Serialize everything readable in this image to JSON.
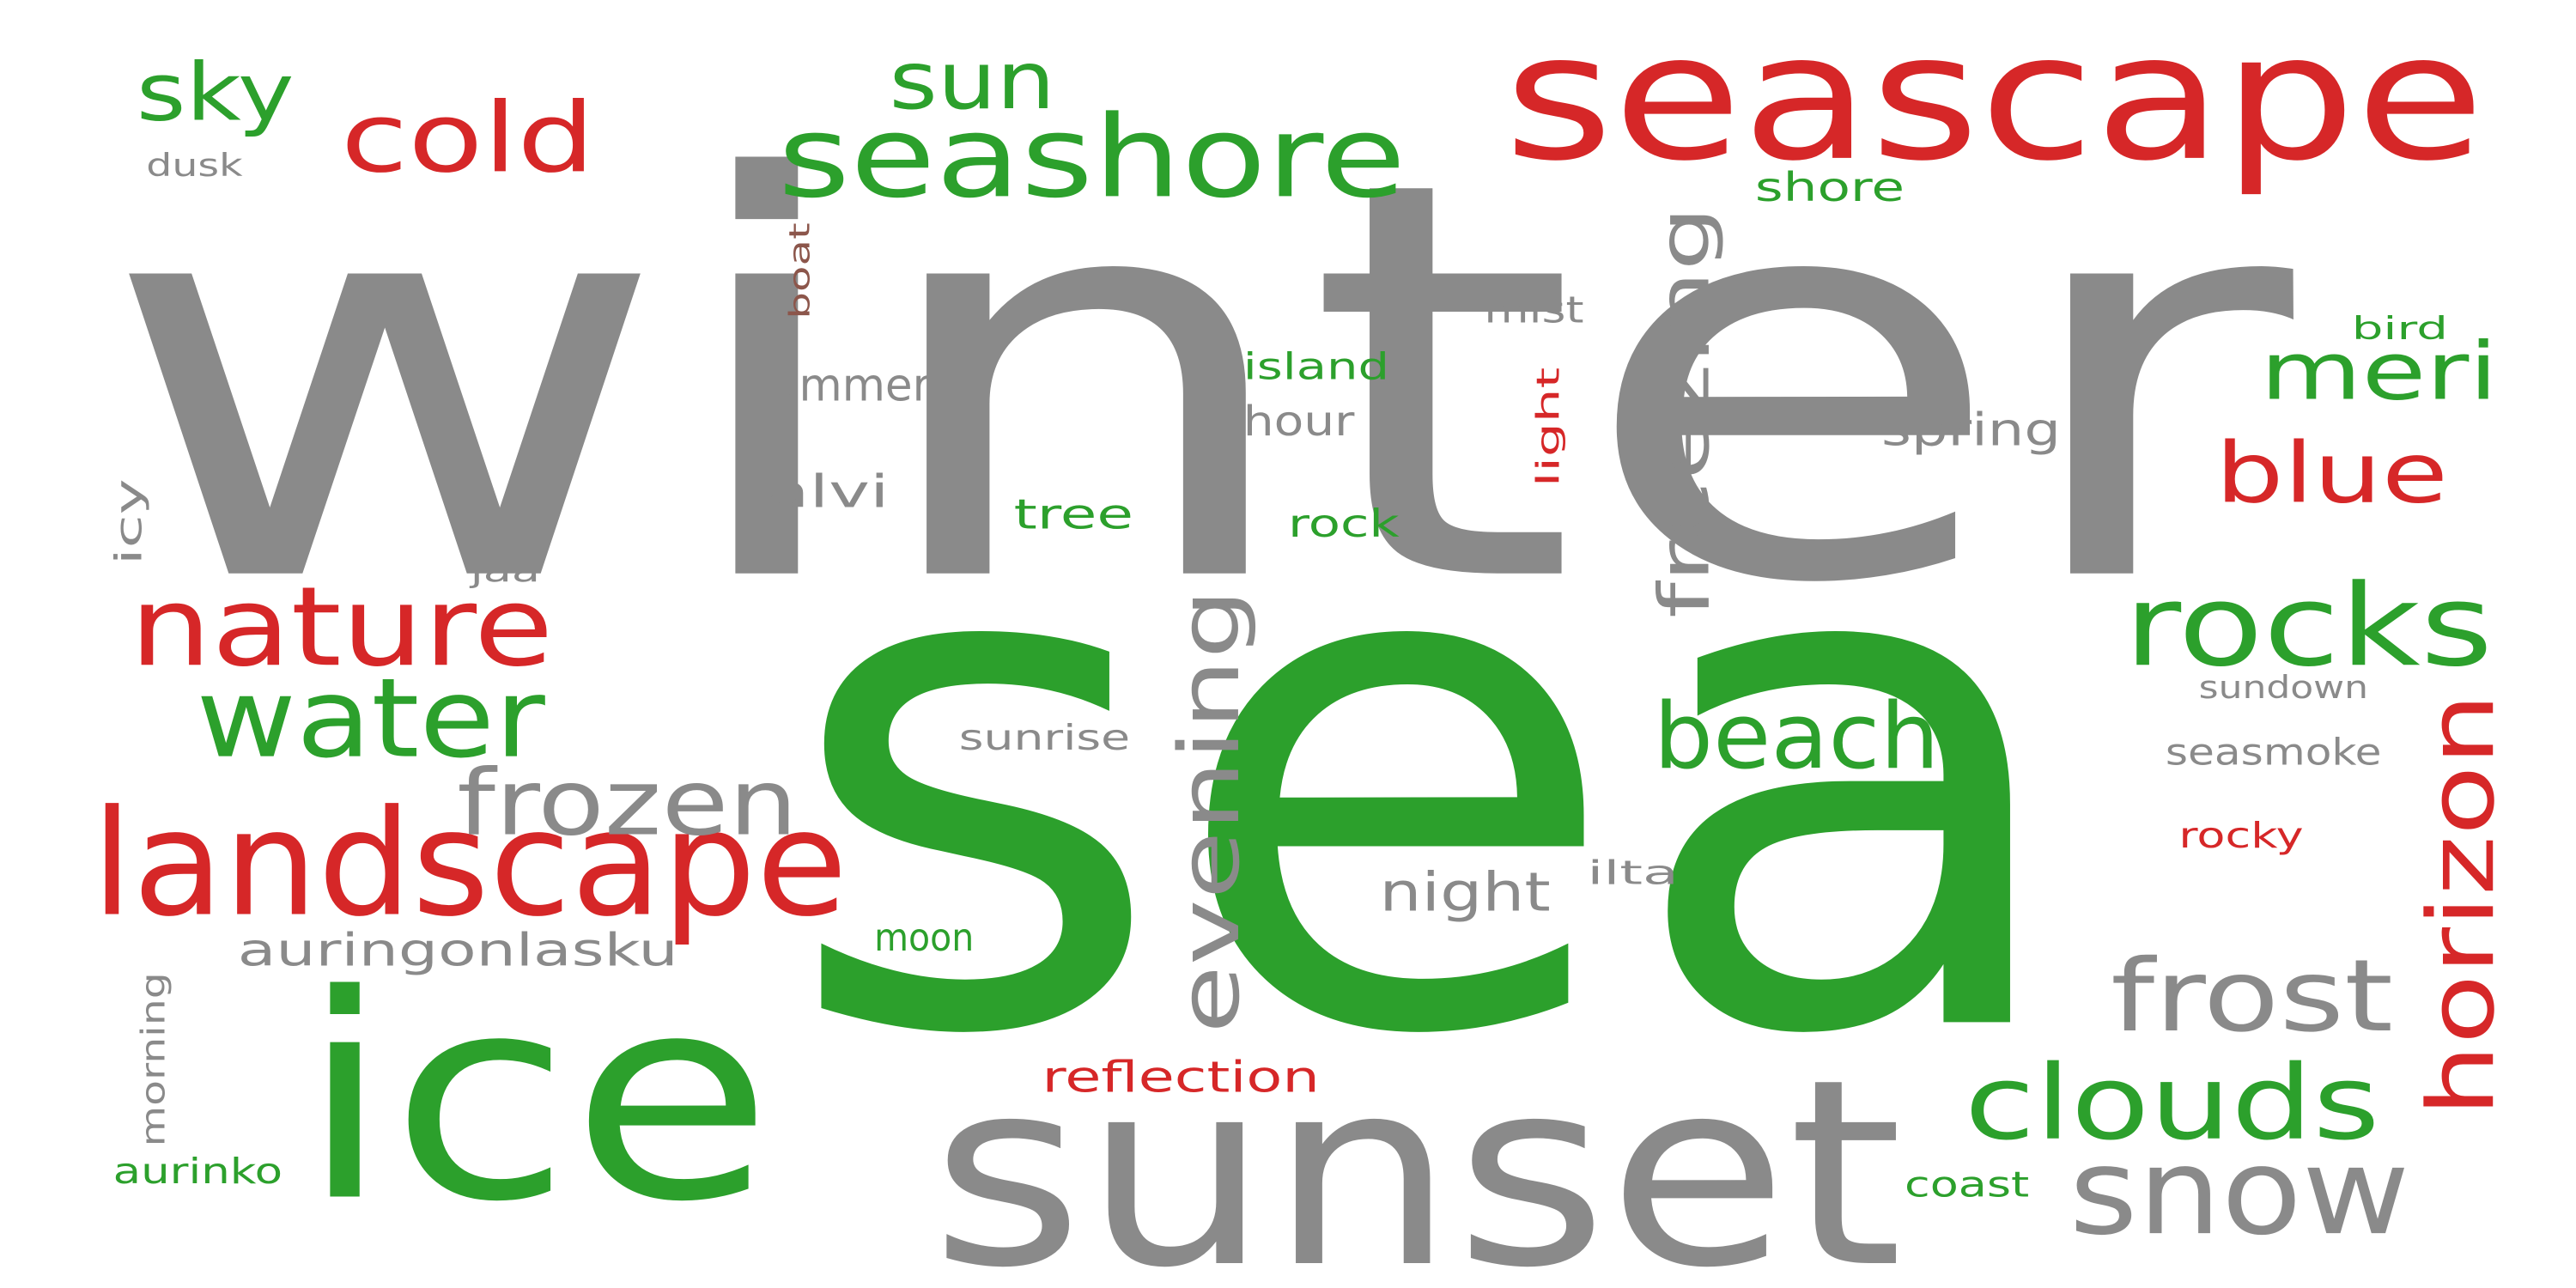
{
  "colors": {
    "gray": "#8a8a8a",
    "green": "#2ca02c",
    "red": "#d62728",
    "brown": "#8c564b"
  },
  "words": {
    "winter": "winter",
    "sea": "sea",
    "seascape": "seascape",
    "sunset": "sunset",
    "ice": "ice",
    "seashore": "seashore",
    "landscape": "landscape",
    "nature": "nature",
    "water": "water",
    "rocks": "rocks",
    "frozen": "frozen",
    "snow": "snow",
    "frost": "frost",
    "clouds": "clouds",
    "beach": "beach",
    "horizon": "horizon",
    "evening": "evening",
    "freezing": "freezing",
    "cold": "cold",
    "sun": "sun",
    "sky": "sky",
    "meri": "meri",
    "blue": "blue",
    "auringonlasku": "auringonlasku",
    "night": "night",
    "summer": "summer",
    "talvi": "talvi",
    "reflection": "reflection",
    "spring": "spring",
    "island": "island",
    "hour": "hour",
    "tree": "tree",
    "rock": "rock",
    "moon": "moon",
    "seasmoke": "seasmoke",
    "sunrise": "sunrise",
    "shore": "shore",
    "mist": "mist",
    "light": "light",
    "bird": "bird",
    "boat": "boat",
    "dusk": "dusk",
    "icy": "icy",
    "jää": "jää",
    "sundown": "sundown",
    "rocky": "rocky",
    "ilta": "ilta",
    "coast": "coast",
    "aurinko": "aurinko",
    "morning": "morning"
  }
}
